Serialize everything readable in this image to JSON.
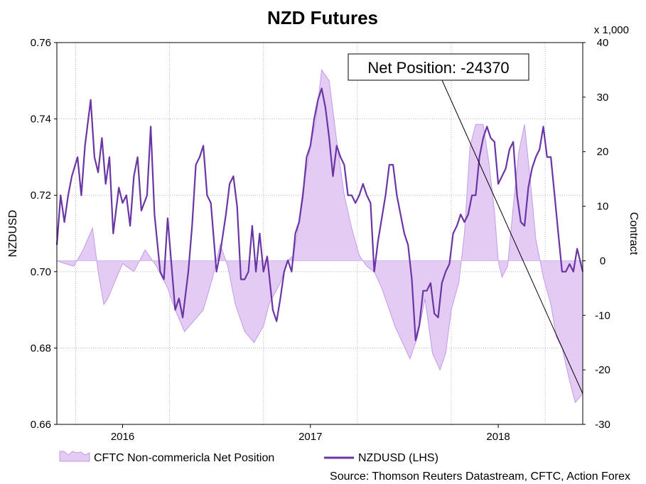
{
  "chart_data": {
    "type": "line",
    "title": "NZD Futures",
    "source": "Source: Thomson Reuters Datastream, CFTC, Action Forex",
    "left_axis": {
      "label": "NZDUSD",
      "ylim": [
        0.66,
        0.76
      ],
      "ticks": [
        "0.66",
        "0.68",
        "0.70",
        "0.72",
        "0.74",
        "0.76"
      ]
    },
    "right_axis": {
      "label": "Contract",
      "unit": "x 1,000",
      "ylim": [
        -30,
        40
      ],
      "ticks": [
        "-30",
        "-20",
        "-10",
        "0",
        "10",
        "20",
        "30",
        "40"
      ]
    },
    "x_axis": {
      "range": [
        2015.65,
        2018.45
      ],
      "ticks": [
        2016,
        2017,
        2018
      ],
      "tick_labels": [
        "2016",
        "2017",
        "2018"
      ],
      "gridlines": [
        2015.75,
        2016.25,
        2016.75,
        2017.25,
        2017.75,
        2018.25,
        2018.45
      ]
    },
    "grid": true,
    "legend_position": "bottom-left",
    "annotation": {
      "text": "Net Position: -24370",
      "x": 2018.45,
      "y": -24.37
    },
    "series": [
      {
        "name": "CFTC Non-commericla Net Position",
        "type": "area",
        "axis": "right",
        "color": "#e3cbf4",
        "edge_color": "#c39be8",
        "x": [
          2015.65,
          2015.69,
          2015.74,
          2015.79,
          2015.84,
          2015.87,
          2015.9,
          2015.92,
          2016.0,
          2016.06,
          2016.12,
          2016.18,
          2016.24,
          2016.28,
          2016.33,
          2016.38,
          2016.43,
          2016.48,
          2016.52,
          2016.56,
          2016.6,
          2016.65,
          2016.7,
          2016.75,
          2016.78,
          2016.84,
          2016.88,
          2016.91,
          2016.93,
          2016.96,
          2017.0,
          2017.03,
          2017.06,
          2017.1,
          2017.14,
          2017.18,
          2017.22,
          2017.26,
          2017.3,
          2017.34,
          2017.38,
          2017.42,
          2017.45,
          2017.49,
          2017.53,
          2017.57,
          2017.61,
          2017.65,
          2017.69,
          2017.72,
          2017.75,
          2017.79,
          2017.82,
          2017.85,
          2017.88,
          2017.92,
          2017.95,
          2017.98,
          2018.0,
          2018.02,
          2018.05,
          2018.08,
          2018.11,
          2018.14,
          2018.17,
          2018.2,
          2018.24,
          2018.28,
          2018.31,
          2018.34,
          2018.38,
          2018.41,
          2018.45
        ],
        "values": [
          0,
          -0.5,
          -1,
          2,
          6,
          -2,
          -8,
          -7,
          -0.5,
          -2,
          2,
          -1,
          -5,
          -9,
          -13,
          -11,
          -9,
          -3,
          3,
          -1,
          -8,
          -13,
          -15,
          -12,
          -8,
          -4,
          0,
          1,
          5,
          13,
          21,
          26,
          35,
          33,
          22,
          12,
          6,
          1,
          -1,
          -2,
          -5,
          -9,
          -12,
          -15,
          -18,
          -14,
          -7,
          -17,
          -20,
          -17,
          -9,
          -4,
          5,
          21,
          25,
          25,
          18,
          9,
          0,
          -3,
          -1,
          10,
          20,
          25,
          15,
          4,
          -3,
          -8,
          -14,
          -16,
          -22,
          -26,
          -24.37
        ]
      },
      {
        "name": "NZDUSD (LHS)",
        "type": "line",
        "axis": "left",
        "color": "#6a35a4",
        "x": [
          2015.65,
          2015.67,
          2015.69,
          2015.71,
          2015.73,
          2015.76,
          2015.78,
          2015.8,
          2015.83,
          2015.85,
          2015.87,
          2015.89,
          2015.91,
          2015.93,
          2015.95,
          2015.98,
          2016.0,
          2016.02,
          2016.04,
          2016.06,
          2016.08,
          2016.1,
          2016.13,
          2016.15,
          2016.17,
          2016.2,
          2016.22,
          2016.24,
          2016.26,
          2016.28,
          2016.3,
          2016.32,
          2016.35,
          2016.37,
          2016.39,
          2016.41,
          2016.43,
          2016.45,
          2016.47,
          2016.5,
          2016.52,
          2016.55,
          2016.57,
          2016.59,
          2016.61,
          2016.63,
          2016.65,
          2016.67,
          2016.69,
          2016.71,
          2016.73,
          2016.75,
          2016.77,
          2016.8,
          2016.82,
          2016.84,
          2016.86,
          2016.88,
          2016.9,
          2016.92,
          2016.94,
          2016.96,
          2016.98,
          2017.0,
          2017.02,
          2017.04,
          2017.06,
          2017.08,
          2017.1,
          2017.12,
          2017.14,
          2017.16,
          2017.18,
          2017.2,
          2017.22,
          2017.24,
          2017.26,
          2017.28,
          2017.3,
          2017.32,
          2017.34,
          2017.36,
          2017.38,
          2017.4,
          2017.42,
          2017.44,
          2017.46,
          2017.48,
          2017.5,
          2017.52,
          2017.54,
          2017.56,
          2017.58,
          2017.6,
          2017.62,
          2017.64,
          2017.66,
          2017.68,
          2017.7,
          2017.72,
          2017.74,
          2017.76,
          2017.78,
          2017.8,
          2017.82,
          2017.84,
          2017.86,
          2017.88,
          2017.9,
          2017.92,
          2017.94,
          2017.96,
          2017.98,
          2018.0,
          2018.02,
          2018.04,
          2018.06,
          2018.08,
          2018.1,
          2018.12,
          2018.14,
          2018.16,
          2018.18,
          2018.2,
          2018.22,
          2018.24,
          2018.26,
          2018.28,
          2018.3,
          2018.32,
          2018.34,
          2018.36,
          2018.38,
          2018.4,
          2018.42,
          2018.44,
          2018.45
        ],
        "values": [
          0.707,
          0.72,
          0.713,
          0.72,
          0.725,
          0.73,
          0.72,
          0.733,
          0.745,
          0.73,
          0.726,
          0.735,
          0.723,
          0.73,
          0.71,
          0.722,
          0.718,
          0.72,
          0.712,
          0.725,
          0.73,
          0.716,
          0.72,
          0.738,
          0.715,
          0.7,
          0.698,
          0.714,
          0.702,
          0.69,
          0.693,
          0.688,
          0.7,
          0.712,
          0.728,
          0.73,
          0.733,
          0.72,
          0.718,
          0.7,
          0.705,
          0.715,
          0.723,
          0.725,
          0.717,
          0.698,
          0.698,
          0.7,
          0.712,
          0.7,
          0.71,
          0.7,
          0.704,
          0.69,
          0.687,
          0.693,
          0.7,
          0.703,
          0.7,
          0.71,
          0.713,
          0.72,
          0.73,
          0.733,
          0.74,
          0.745,
          0.748,
          0.743,
          0.735,
          0.725,
          0.733,
          0.73,
          0.728,
          0.72,
          0.72,
          0.718,
          0.72,
          0.723,
          0.72,
          0.718,
          0.7,
          0.708,
          0.714,
          0.72,
          0.728,
          0.728,
          0.72,
          0.715,
          0.71,
          0.707,
          0.698,
          0.682,
          0.686,
          0.695,
          0.695,
          0.697,
          0.689,
          0.688,
          0.697,
          0.7,
          0.702,
          0.71,
          0.712,
          0.715,
          0.713,
          0.715,
          0.72,
          0.72,
          0.73,
          0.735,
          0.738,
          0.735,
          0.734,
          0.723,
          0.725,
          0.727,
          0.732,
          0.734,
          0.72,
          0.713,
          0.712,
          0.722,
          0.727,
          0.73,
          0.732,
          0.738,
          0.73,
          0.73,
          0.72,
          0.71,
          0.7,
          0.7,
          0.702,
          0.7,
          0.706,
          0.702,
          0.7
        ]
      }
    ]
  }
}
